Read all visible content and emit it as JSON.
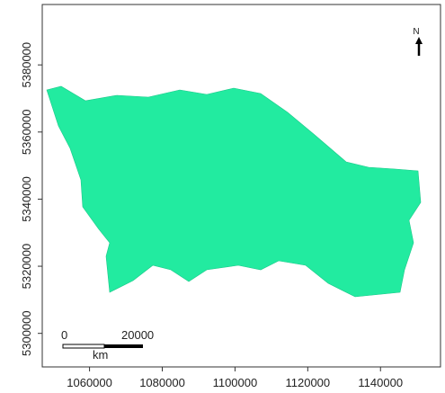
{
  "chart_data": {
    "type": "map",
    "xlim": [
      1047000,
      1156500
    ],
    "ylim": [
      5290000,
      5398000
    ],
    "xticks": [
      1060000,
      1080000,
      1100000,
      1120000,
      1140000
    ],
    "yticks": [
      5300000,
      5320000,
      5340000,
      5360000,
      5380000
    ],
    "north": "N",
    "scale_labels": [
      "0",
      "20000",
      "km"
    ],
    "color": "#22eba0"
  }
}
